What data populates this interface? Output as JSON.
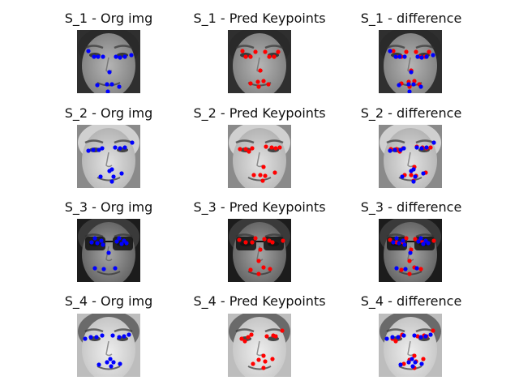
{
  "samples": [
    {
      "titles": [
        "S_1 - Org img",
        "S_1 - Pred Keypoints",
        "S_1 - difference"
      ],
      "original_points": [
        [
          14,
          26
        ],
        [
          21,
          33
        ],
        [
          26,
          33
        ],
        [
          32,
          33
        ],
        [
          48,
          33
        ],
        [
          53,
          34
        ],
        [
          59,
          33
        ],
        [
          67,
          31
        ],
        [
          40,
          52
        ],
        [
          25,
          68
        ],
        [
          37,
          67
        ],
        [
          43,
          67
        ],
        [
          52,
          70
        ],
        [
          38,
          76
        ]
      ],
      "predicted_points": [
        [
          18,
          26
        ],
        [
          22,
          33
        ],
        [
          28,
          33
        ],
        [
          34,
          27
        ],
        [
          46,
          27
        ],
        [
          51,
          33
        ],
        [
          57,
          33
        ],
        [
          62,
          27
        ],
        [
          40,
          50
        ],
        [
          28,
          66
        ],
        [
          37,
          64
        ],
        [
          44,
          63
        ],
        [
          50,
          67
        ],
        [
          38,
          70
        ]
      ]
    },
    {
      "titles": [
        "S_2 - Org img",
        "S_2 - Pred Keypoints",
        "S_2 - difference"
      ],
      "original_points": [
        [
          14,
          32
        ],
        [
          20,
          31
        ],
        [
          27,
          31
        ],
        [
          31,
          29
        ],
        [
          47,
          28
        ],
        [
          53,
          29
        ],
        [
          59,
          28
        ],
        [
          68,
          22
        ],
        [
          43,
          55
        ],
        [
          29,
          64
        ],
        [
          40,
          57
        ],
        [
          45,
          64
        ],
        [
          55,
          60
        ],
        [
          43,
          70
        ]
      ],
      "predicted_points": [
        [
          15,
          30
        ],
        [
          22,
          30
        ],
        [
          26,
          33
        ],
        [
          30,
          29
        ],
        [
          47,
          27
        ],
        [
          54,
          28
        ],
        [
          59,
          29
        ],
        [
          64,
          28
        ],
        [
          44,
          52
        ],
        [
          32,
          62
        ],
        [
          40,
          62
        ],
        [
          46,
          63
        ],
        [
          58,
          59
        ],
        [
          43,
          69
        ]
      ]
    },
    {
      "titles": [
        "S_3 - Org img",
        "S_3 - Pred Keypoints",
        "S_3 - difference"
      ],
      "original_points": [
        [
          18,
          29
        ],
        [
          22,
          24
        ],
        [
          25,
          30
        ],
        [
          30,
          27
        ],
        [
          32,
          32
        ],
        [
          49,
          28
        ],
        [
          52,
          24
        ],
        [
          55,
          31
        ],
        [
          58,
          27
        ],
        [
          61,
          30
        ],
        [
          39,
          42
        ],
        [
          22,
          61
        ],
        [
          33,
          62
        ],
        [
          47,
          61
        ]
      ],
      "predicted_points": [
        [
          14,
          26
        ],
        [
          22,
          29
        ],
        [
          30,
          29
        ],
        [
          34,
          24
        ],
        [
          45,
          25
        ],
        [
          51,
          27
        ],
        [
          55,
          29
        ],
        [
          68,
          27
        ],
        [
          40,
          38
        ],
        [
          28,
          63
        ],
        [
          38,
          52
        ],
        [
          44,
          60
        ],
        [
          52,
          62
        ],
        [
          38,
          68
        ]
      ]
    },
    {
      "titles": [
        "S_4 - Org img",
        "S_4 - Pred Keypoints",
        "S_4 - difference"
      ],
      "original_points": [
        [
          10,
          31
        ],
        [
          17,
          29
        ],
        [
          24,
          29
        ],
        [
          31,
          27
        ],
        [
          44,
          27
        ],
        [
          52,
          29
        ],
        [
          58,
          28
        ],
        [
          64,
          26
        ],
        [
          41,
          56
        ],
        [
          27,
          63
        ],
        [
          37,
          60
        ],
        [
          45,
          60
        ],
        [
          53,
          62
        ],
        [
          42,
          65
        ]
      ],
      "predicted_points": [
        [
          17,
          31
        ],
        [
          21,
          34
        ],
        [
          25,
          29
        ],
        [
          29,
          26
        ],
        [
          48,
          28
        ],
        [
          56,
          27
        ],
        [
          59,
          28
        ],
        [
          67,
          21
        ],
        [
          44,
          52
        ],
        [
          31,
          62
        ],
        [
          38,
          57
        ],
        [
          46,
          59
        ],
        [
          55,
          56
        ],
        [
          44,
          67
        ]
      ]
    }
  ],
  "colors": {
    "original": "#0000ff",
    "predicted": "#ff0000"
  }
}
